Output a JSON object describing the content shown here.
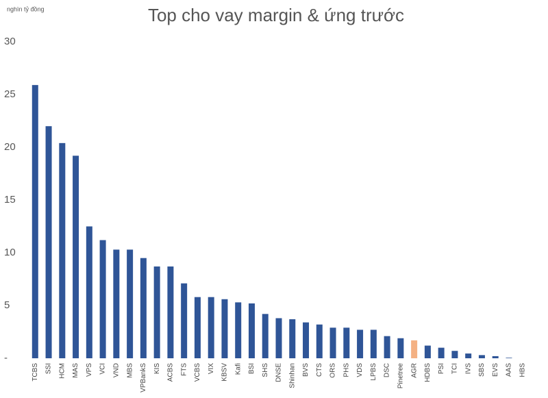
{
  "chart_data": {
    "type": "bar",
    "title": "Top cho vay margin & ứng trước",
    "y_unit_label": "nghìn tỷ đồng",
    "categories": [
      "TCBS",
      "SSI",
      "HCM",
      "MAS",
      "VPS",
      "VCI",
      "VND",
      "MBS",
      "VPBankS",
      "KIS",
      "ACBS",
      "FTS",
      "VCBS",
      "VIX",
      "KBSV",
      "Kafi",
      "BSI",
      "SHS",
      "DNSE",
      "Shinhan",
      "BVS",
      "CTS",
      "ORS",
      "PHS",
      "VDS",
      "LPBS",
      "DSC",
      "Pinetree",
      "AGR",
      "HDBS",
      "PSI",
      "TCI",
      "IVS",
      "SBS",
      "EVS",
      "AAS",
      "HBS"
    ],
    "values": [
      25.9,
      22.0,
      20.4,
      19.2,
      12.5,
      11.2,
      10.3,
      10.3,
      9.5,
      8.7,
      8.7,
      7.1,
      5.8,
      5.8,
      5.6,
      5.3,
      5.2,
      4.2,
      3.8,
      3.7,
      3.4,
      3.2,
      2.9,
      2.9,
      2.7,
      2.7,
      2.1,
      1.9,
      1.7,
      1.2,
      1.0,
      0.7,
      0.45,
      0.3,
      0.2,
      0.05,
      0
    ],
    "colors": [
      "#2f5597",
      "#2f5597",
      "#2f5597",
      "#2f5597",
      "#2f5597",
      "#2f5597",
      "#2f5597",
      "#2f5597",
      "#2f5597",
      "#2f5597",
      "#2f5597",
      "#2f5597",
      "#2f5597",
      "#2f5597",
      "#2f5597",
      "#2f5597",
      "#2f5597",
      "#2f5597",
      "#2f5597",
      "#2f5597",
      "#2f5597",
      "#2f5597",
      "#2f5597",
      "#2f5597",
      "#2f5597",
      "#2f5597",
      "#2f5597",
      "#2f5597",
      "#f4b183",
      "#2f5597",
      "#2f5597",
      "#2f5597",
      "#2f5597",
      "#2f5597",
      "#2f5597",
      "#2f5597",
      "#2f5597"
    ],
    "ylim": [
      0,
      30
    ],
    "yticks": [
      {
        "value": 0,
        "label": "-"
      },
      5,
      10,
      15,
      20,
      25,
      30
    ],
    "grid": false
  }
}
